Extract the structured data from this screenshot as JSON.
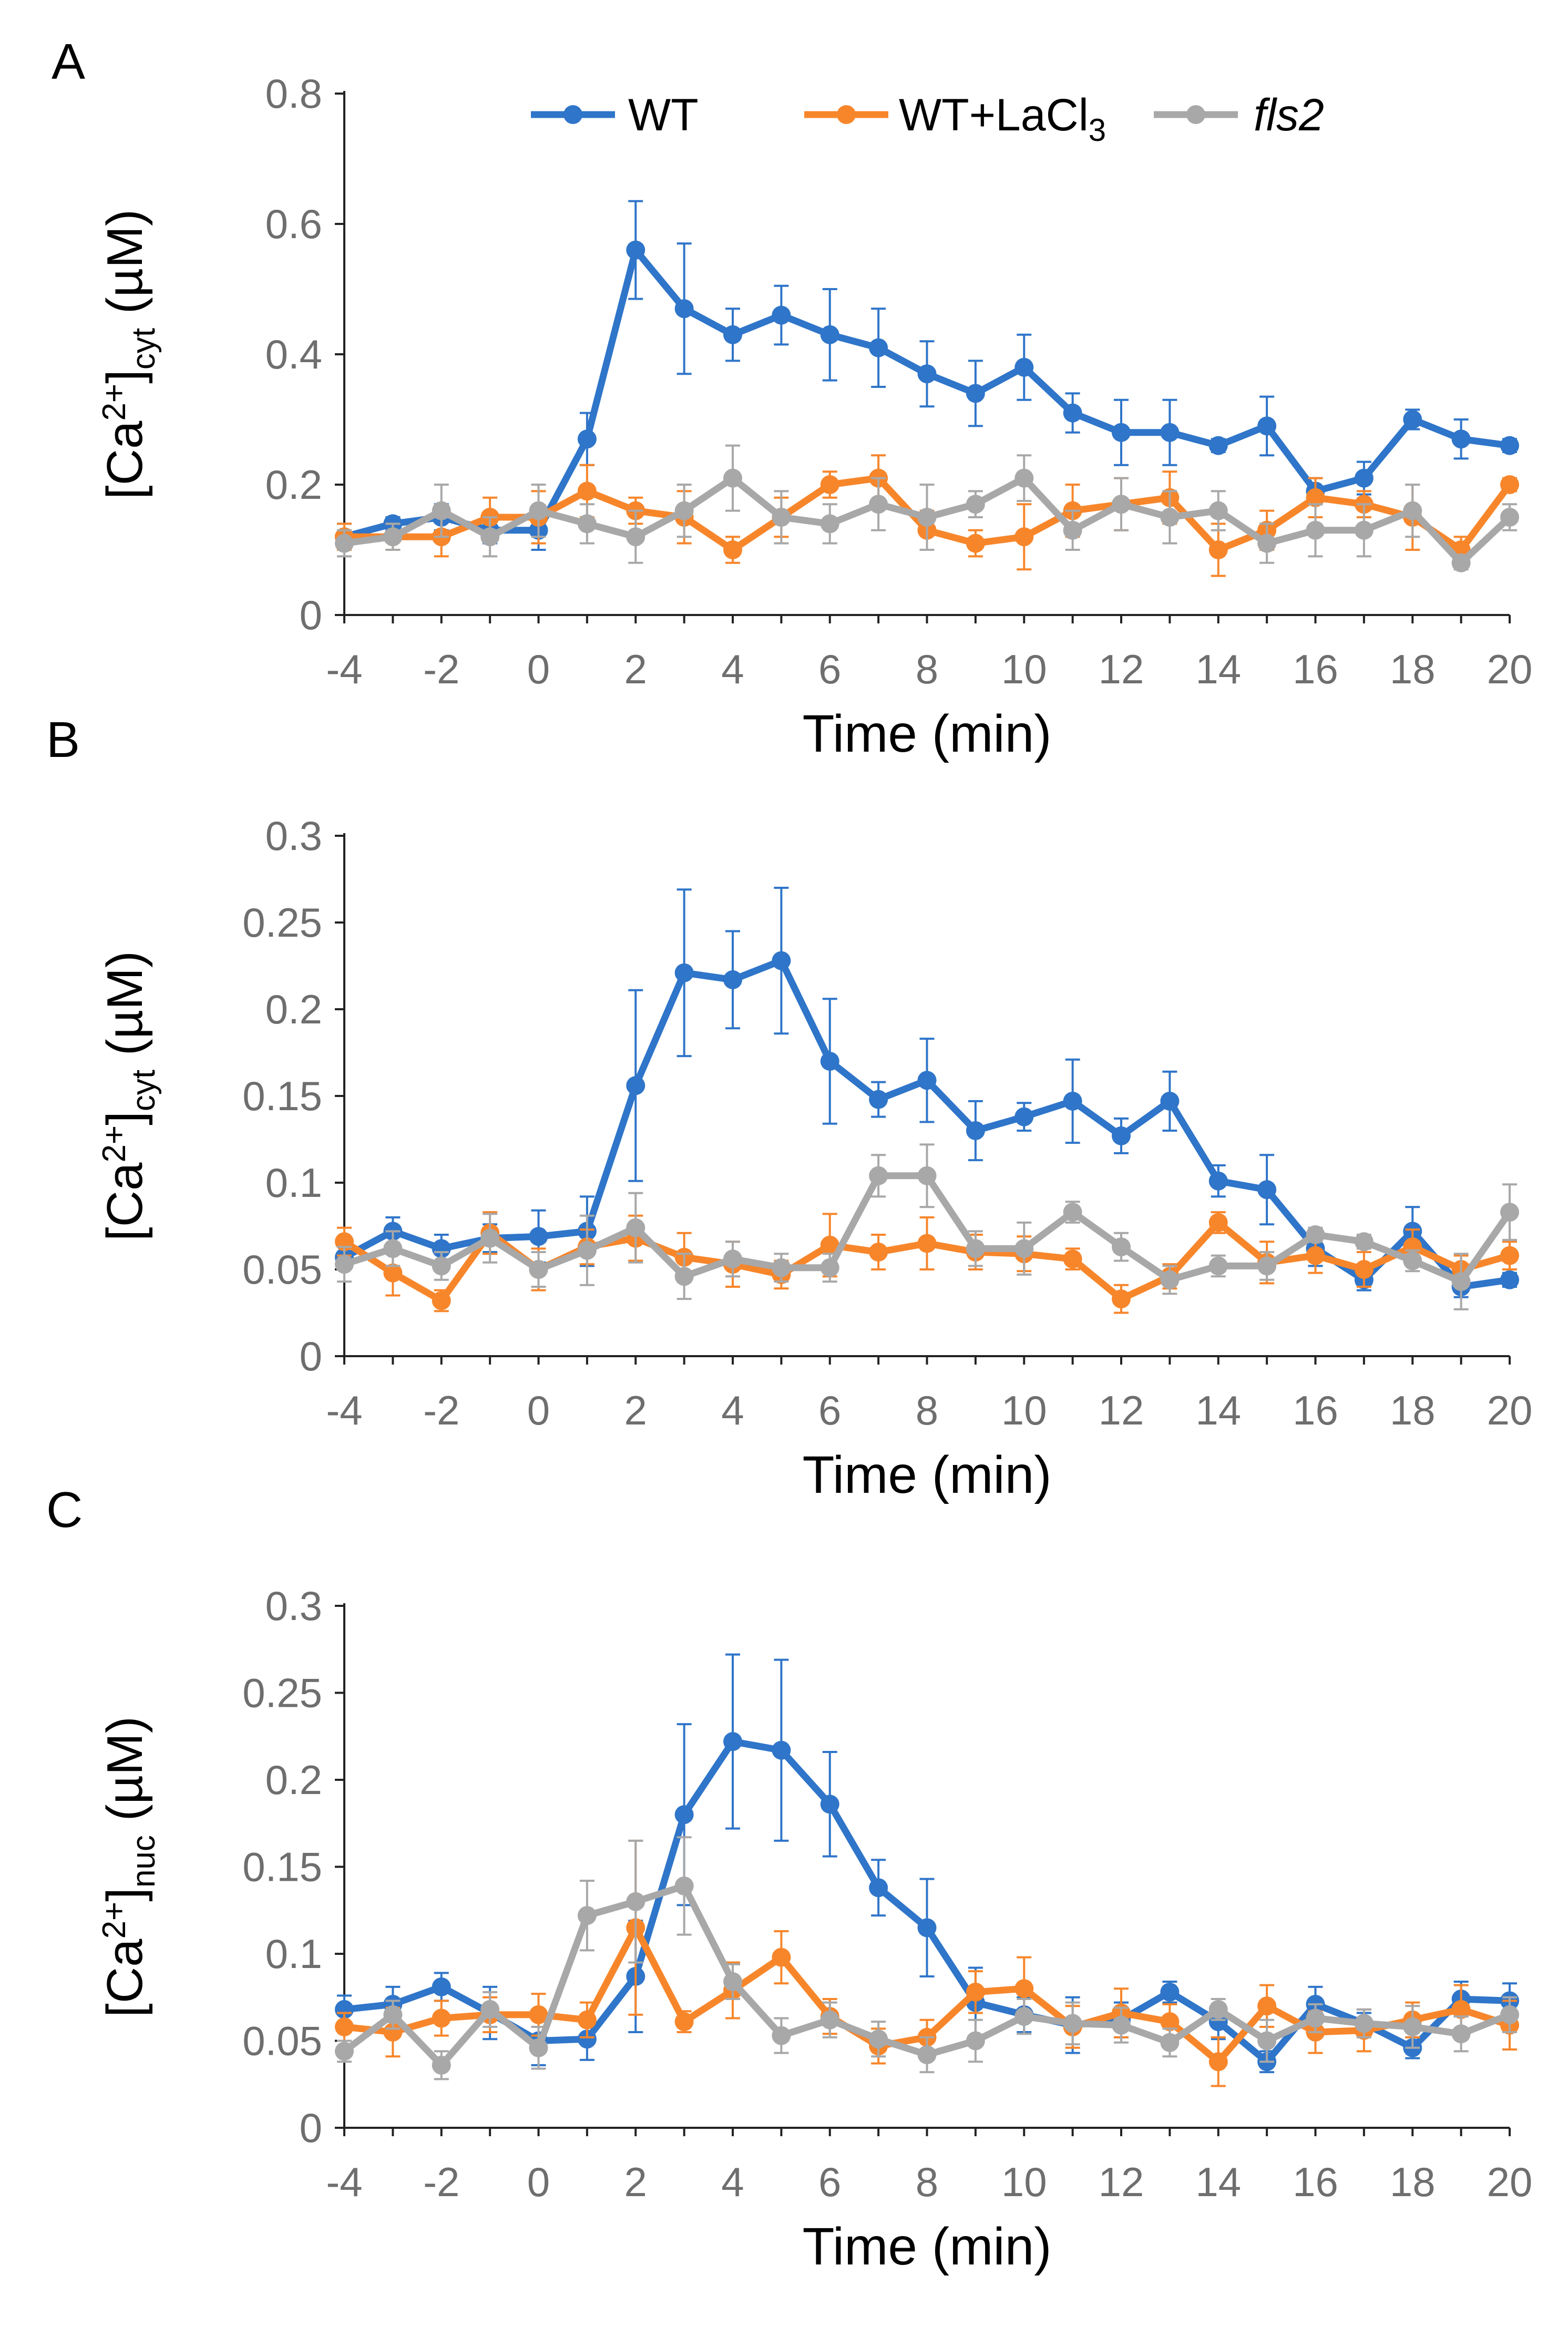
{
  "colors": {
    "WT": "#2F75C9",
    "WT+LaCl3": "#F7862B",
    "fls2": "#A8A8A8",
    "axis": "#222222",
    "tick": "#6e6e6e"
  },
  "legend": [
    {
      "key": "WT",
      "label": "WT",
      "icon": "blue-line-marker"
    },
    {
      "key": "WT+LaCl3",
      "label": "WT+LaCl",
      "sub": "3",
      "icon": "orange-line-marker"
    },
    {
      "key": "fls2",
      "label": "fls2",
      "italic": true,
      "icon": "gray-line-marker"
    }
  ],
  "chart_data": [
    {
      "type": "line",
      "panel_label": "A",
      "xlabel": "Time (min)",
      "ylabel": {
        "main": "[Ca",
        "sup": "2+",
        "close": "]",
        "sub": "cyt",
        "unit": " (µM)"
      },
      "x": [
        -4,
        -3,
        -2,
        -1,
        0,
        1,
        2,
        3,
        4,
        5,
        6,
        7,
        8,
        9,
        10,
        11,
        12,
        13,
        14,
        15,
        16,
        17,
        18,
        19,
        20
      ],
      "xticks": [
        -4,
        -2,
        0,
        2,
        4,
        6,
        8,
        10,
        12,
        14,
        16,
        18,
        20
      ],
      "xlim": [
        -4,
        20
      ],
      "ylim": [
        0,
        0.8
      ],
      "yticks": [
        0,
        0.2,
        0.4,
        0.6,
        0.8
      ],
      "ytick_labels": [
        "0",
        "0.2",
        "0.4",
        "0.6",
        "0.8"
      ],
      "series": [
        {
          "name": "WT",
          "values": [
            0.12,
            0.14,
            0.15,
            0.13,
            0.13,
            0.27,
            0.56,
            0.47,
            0.43,
            0.46,
            0.43,
            0.41,
            0.37,
            0.34,
            0.38,
            0.31,
            0.28,
            0.28,
            0.26,
            0.29,
            0.19,
            0.21,
            0.3,
            0.27,
            0.26
          ],
          "errors": [
            0.02,
            0.01,
            0.02,
            0.02,
            0.03,
            0.04,
            0.075,
            0.1,
            0.04,
            0.045,
            0.07,
            0.06,
            0.05,
            0.05,
            0.05,
            0.03,
            0.05,
            0.05,
            0.01,
            0.045,
            0.02,
            0.025,
            0.015,
            0.03,
            0.01
          ]
        },
        {
          "name": "WT+LaCl3",
          "values": [
            0.12,
            0.12,
            0.12,
            0.15,
            0.15,
            0.19,
            0.16,
            0.15,
            0.1,
            0.15,
            0.2,
            0.21,
            0.13,
            0.11,
            0.12,
            0.16,
            0.17,
            0.18,
            0.1,
            0.13,
            0.18,
            0.17,
            0.15,
            0.1,
            0.2
          ],
          "errors": [
            0.02,
            0.02,
            0.03,
            0.03,
            0.04,
            0.04,
            0.02,
            0.04,
            0.02,
            0.03,
            0.02,
            0.035,
            0.03,
            0.02,
            0.05,
            0.04,
            0.04,
            0.04,
            0.04,
            0.03,
            0.03,
            0.02,
            0.05,
            0.02,
            0.01
          ]
        },
        {
          "name": "fls2",
          "values": [
            0.11,
            0.12,
            0.16,
            0.12,
            0.16,
            0.14,
            0.12,
            0.16,
            0.21,
            0.15,
            0.14,
            0.17,
            0.15,
            0.17,
            0.21,
            0.13,
            0.17,
            0.15,
            0.16,
            0.11,
            0.13,
            0.13,
            0.16,
            0.08,
            0.15
          ],
          "errors": [
            0.02,
            0.02,
            0.04,
            0.03,
            0.04,
            0.03,
            0.04,
            0.04,
            0.05,
            0.04,
            0.03,
            0.04,
            0.05,
            0.02,
            0.035,
            0.03,
            0.04,
            0.04,
            0.03,
            0.03,
            0.04,
            0.04,
            0.04,
            0.01,
            0.02
          ]
        }
      ]
    },
    {
      "type": "line",
      "panel_label": "B",
      "xlabel": "Time (min)",
      "ylabel": {
        "main": "[Ca",
        "sup": "2+",
        "close": "]",
        "sub": "cyt",
        "unit": " (µM)"
      },
      "x": [
        -4,
        -3,
        -2,
        -1,
        0,
        1,
        2,
        3,
        4,
        5,
        6,
        7,
        8,
        9,
        10,
        11,
        12,
        13,
        14,
        15,
        16,
        17,
        18,
        19,
        20
      ],
      "xticks": [
        -4,
        -2,
        0,
        2,
        4,
        6,
        8,
        10,
        12,
        14,
        16,
        18,
        20
      ],
      "xlim": [
        -4,
        20
      ],
      "ylim": [
        0,
        0.3
      ],
      "yticks": [
        0,
        0.05,
        0.1,
        0.15,
        0.2,
        0.25,
        0.3
      ],
      "ytick_labels": [
        "0",
        "0.05",
        "0.1",
        "0.15",
        "0.2",
        "0.25",
        "0.3"
      ],
      "series": [
        {
          "name": "WT",
          "values": [
            0.057,
            0.072,
            0.062,
            0.068,
            0.069,
            0.072,
            0.156,
            0.221,
            0.217,
            0.228,
            0.17,
            0.148,
            0.159,
            0.13,
            0.138,
            0.147,
            0.127,
            0.147,
            0.101,
            0.096,
            0.062,
            0.044,
            0.072,
            0.04,
            0.044
          ],
          "errors": [
            0.006,
            0.008,
            0.008,
            0.008,
            0.015,
            0.02,
            0.055,
            0.048,
            0.028,
            0.042,
            0.036,
            0.01,
            0.024,
            0.017,
            0.008,
            0.024,
            0.01,
            0.017,
            0.009,
            0.02,
            0.01,
            0.006,
            0.014,
            0.006,
            0.004
          ]
        },
        {
          "name": "WT+LaCl3",
          "values": [
            0.066,
            0.048,
            0.032,
            0.071,
            0.05,
            0.063,
            0.068,
            0.057,
            0.053,
            0.047,
            0.064,
            0.06,
            0.065,
            0.06,
            0.059,
            0.056,
            0.033,
            0.046,
            0.077,
            0.054,
            0.058,
            0.05,
            0.063,
            0.05,
            0.058
          ],
          "errors": [
            0.008,
            0.013,
            0.006,
            0.012,
            0.012,
            0.01,
            0.013,
            0.014,
            0.013,
            0.008,
            0.018,
            0.01,
            0.015,
            0.01,
            0.01,
            0.006,
            0.008,
            0.007,
            0.006,
            0.012,
            0.01,
            0.01,
            0.01,
            0.008,
            0.008
          ]
        },
        {
          "name": "fls2",
          "values": [
            0.053,
            0.062,
            0.052,
            0.068,
            0.05,
            0.061,
            0.074,
            0.046,
            0.056,
            0.051,
            0.051,
            0.104,
            0.104,
            0.062,
            0.062,
            0.083,
            0.063,
            0.044,
            0.052,
            0.052,
            0.07,
            0.066,
            0.055,
            0.043,
            0.083
          ],
          "errors": [
            0.01,
            0.01,
            0.008,
            0.014,
            0.01,
            0.02,
            0.02,
            0.013,
            0.01,
            0.008,
            0.008,
            0.012,
            0.018,
            0.01,
            0.015,
            0.006,
            0.008,
            0.008,
            0.006,
            0.008,
            0.004,
            0.004,
            0.006,
            0.016,
            0.016
          ]
        }
      ]
    },
    {
      "type": "line",
      "panel_label": "C",
      "xlabel": "Time (min)",
      "ylabel": {
        "main": "[Ca",
        "sup": "2+",
        "close": "]",
        "sub": "nuc",
        "unit": " (µM)"
      },
      "x": [
        -4,
        -3,
        -2,
        -1,
        0,
        1,
        2,
        3,
        4,
        5,
        6,
        7,
        8,
        9,
        10,
        11,
        12,
        13,
        14,
        15,
        16,
        17,
        18,
        19,
        20
      ],
      "xticks": [
        -4,
        -2,
        0,
        2,
        4,
        6,
        8,
        10,
        12,
        14,
        16,
        18,
        20
      ],
      "xlim": [
        -4,
        20
      ],
      "ylim": [
        0,
        0.3
      ],
      "yticks": [
        0,
        0.05,
        0.1,
        0.15,
        0.2,
        0.25,
        0.3
      ],
      "ytick_labels": [
        "0",
        "0.05",
        "0.1",
        "0.15",
        "0.2",
        "0.25",
        "0.3"
      ],
      "series": [
        {
          "name": "WT",
          "values": [
            0.068,
            0.071,
            0.081,
            0.066,
            0.05,
            0.051,
            0.087,
            0.18,
            0.222,
            0.217,
            0.186,
            0.138,
            0.115,
            0.072,
            0.065,
            0.059,
            0.062,
            0.078,
            0.061,
            0.038,
            0.071,
            0.06,
            0.046,
            0.074,
            0.073
          ],
          "errors": [
            0.008,
            0.01,
            0.008,
            0.015,
            0.014,
            0.012,
            0.032,
            0.052,
            0.05,
            0.052,
            0.03,
            0.016,
            0.028,
            0.02,
            0.01,
            0.016,
            0.01,
            0.006,
            0.01,
            0.006,
            0.01,
            0.006,
            0.006,
            0.01,
            0.01
          ]
        },
        {
          "name": "WT+LaCl3",
          "values": [
            0.058,
            0.055,
            0.063,
            0.065,
            0.065,
            0.062,
            0.115,
            0.061,
            0.079,
            0.098,
            0.064,
            0.047,
            0.052,
            0.078,
            0.08,
            0.058,
            0.066,
            0.061,
            0.038,
            0.07,
            0.055,
            0.056,
            0.062,
            0.068,
            0.059
          ],
          "errors": [
            0.008,
            0.014,
            0.01,
            0.01,
            0.012,
            0.01,
            0.05,
            0.006,
            0.016,
            0.015,
            0.01,
            0.01,
            0.01,
            0.012,
            0.018,
            0.012,
            0.014,
            0.01,
            0.014,
            0.012,
            0.012,
            0.012,
            0.01,
            0.014,
            0.014
          ]
        },
        {
          "name": "fls2",
          "values": [
            0.044,
            0.065,
            0.036,
            0.068,
            0.046,
            0.122,
            0.13,
            0.139,
            0.084,
            0.053,
            0.062,
            0.051,
            0.042,
            0.05,
            0.064,
            0.06,
            0.059,
            0.049,
            0.068,
            0.05,
            0.063,
            0.06,
            0.058,
            0.054,
            0.065
          ],
          "errors": [
            0.006,
            0.008,
            0.008,
            0.01,
            0.012,
            0.02,
            0.035,
            0.028,
            0.01,
            0.01,
            0.01,
            0.01,
            0.01,
            0.012,
            0.01,
            0.012,
            0.01,
            0.008,
            0.006,
            0.012,
            0.008,
            0.008,
            0.012,
            0.01,
            0.01
          ]
        }
      ]
    }
  ]
}
